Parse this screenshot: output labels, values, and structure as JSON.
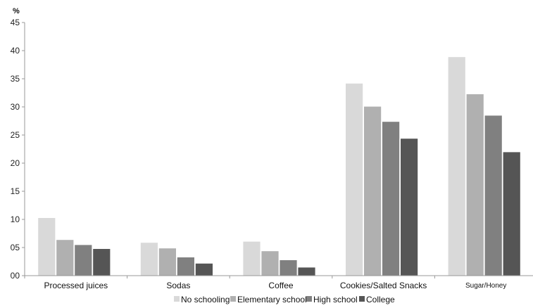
{
  "chart_data": {
    "type": "bar",
    "ylabel": "%",
    "xlabel": "",
    "title": "",
    "ylim": [
      0,
      45
    ],
    "ytick_step": 5,
    "ytick_labels": [
      "00",
      "05",
      "10",
      "15",
      "20",
      "25",
      "30",
      "35",
      "40",
      "45"
    ],
    "categories": [
      "Processed juices",
      "Sodas",
      "Coffee",
      "Cookies/Salted Snacks",
      "Sugar/Honey"
    ],
    "series": [
      {
        "name": "No schooling",
        "color": "#d9d9d9",
        "values": [
          10.3,
          5.9,
          6.1,
          34.2,
          38.9
        ]
      },
      {
        "name": "Elementary school",
        "color": "#b0b0b0",
        "values": [
          6.4,
          4.9,
          4.4,
          30.1,
          32.3
        ]
      },
      {
        "name": "High school",
        "color": "#808080",
        "values": [
          5.5,
          3.3,
          2.8,
          27.4,
          28.5
        ]
      },
      {
        "name": "College",
        "color": "#555555",
        "values": [
          4.8,
          2.2,
          1.5,
          24.4,
          22.0
        ]
      }
    ],
    "grid": false,
    "legend_position": "bottom"
  }
}
